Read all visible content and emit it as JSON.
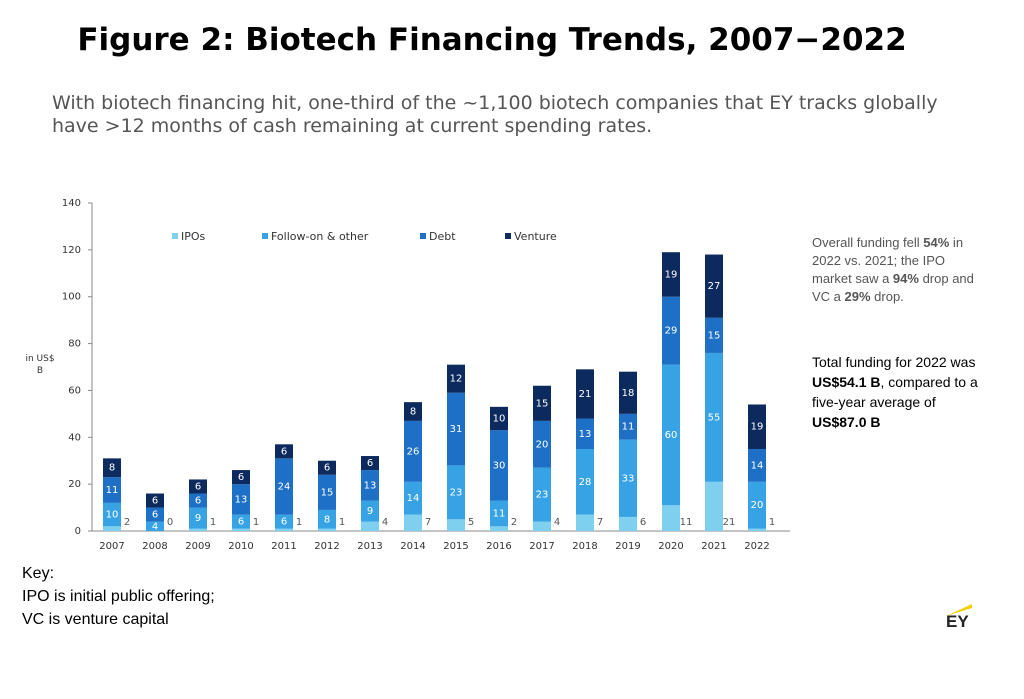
{
  "chart_data": {
    "type": "stacked-bar",
    "title": "Figure 2: Biotech Financing Trends, 2007−2022",
    "subtitle": "With biotech financing hit, one-third of the ~1,100 biotech companies that EY tracks globally have >12 months of cash remaining at current spending rates.",
    "y_label": "in US$ B",
    "categories": [
      "2007",
      "2008",
      "2009",
      "2010",
      "2011",
      "2012",
      "2013",
      "2014",
      "2015",
      "2016",
      "2017",
      "2018",
      "2019",
      "2020",
      "2021",
      "2022"
    ],
    "series": [
      {
        "name": "IPOs",
        "color": "#7fd0ef",
        "values": [
          2,
          0,
          1,
          1,
          1,
          1,
          4,
          7,
          5,
          2,
          4,
          7,
          6,
          11,
          21,
          1
        ]
      },
      {
        "name": "Follow-on & other",
        "color": "#38a3e4",
        "values": [
          10,
          4,
          9,
          6,
          6,
          8,
          9,
          14,
          23,
          11,
          23,
          28,
          33,
          60,
          55,
          20
        ]
      },
      {
        "name": "Debt",
        "color": "#1d70c6",
        "values": [
          11,
          6,
          6,
          13,
          24,
          15,
          13,
          26,
          31,
          30,
          20,
          13,
          11,
          29,
          15,
          14
        ]
      },
      {
        "name": "Venture",
        "color": "#0c2a5e",
        "values": [
          8,
          6,
          6,
          6,
          6,
          6,
          6,
          8,
          12,
          10,
          15,
          21,
          18,
          19,
          27,
          19
        ]
      }
    ],
    "ylim": [
      0,
      140
    ],
    "yticks": [
      0,
      20,
      40,
      60,
      80,
      100,
      120,
      140
    ],
    "annotations": [
      {
        "runs": [
          {
            "text": "Overall funding fell ",
            "bold": false
          },
          {
            "text": "54%",
            "bold": true
          },
          {
            "text": " in 2022 vs. 2021; the IPO market saw a ",
            "bold": false
          },
          {
            "text": "94%",
            "bold": true
          },
          {
            "text": " drop and VC a ",
            "bold": false
          },
          {
            "text": "29%",
            "bold": true
          },
          {
            "text": " drop.",
            "bold": false
          }
        ]
      },
      {
        "runs": [
          {
            "text": "Total funding for 2022 was ",
            "bold": false
          },
          {
            "text": "US$54.1 B",
            "bold": true
          },
          {
            "text": ", compared to a five-year average of ",
            "bold": false
          },
          {
            "text": "US$87.0 B",
            "bold": true
          }
        ]
      }
    ],
    "key": [
      "Key:",
      "IPO is initial public offering;",
      "VC is venture capital"
    ],
    "logo": "EY"
  }
}
